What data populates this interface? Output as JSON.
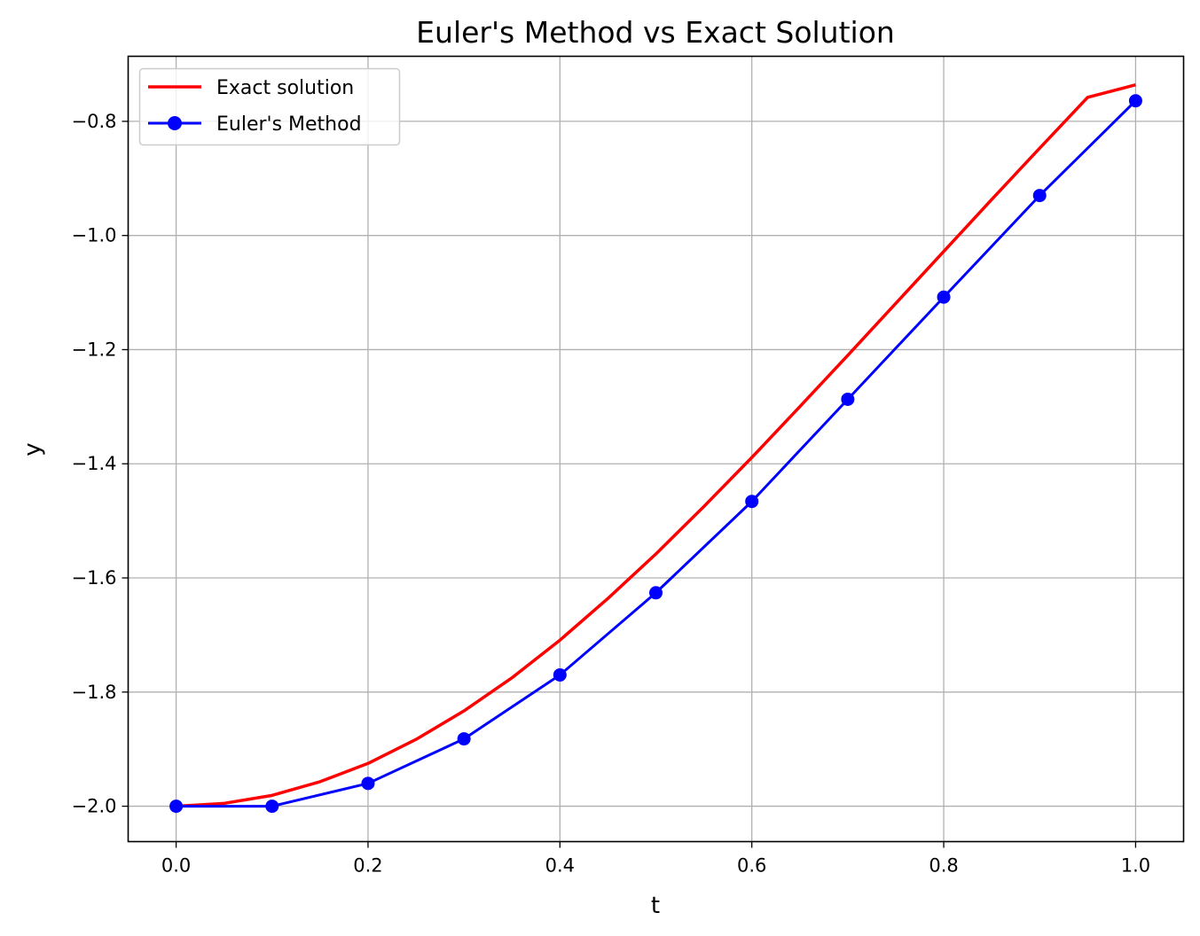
{
  "chart_data": {
    "type": "line",
    "title": "Euler's Method vs Exact Solution",
    "xlabel": "t",
    "ylabel": "y",
    "xlim": [
      -0.05,
      1.05
    ],
    "ylim": [
      -2.062,
      -0.686
    ],
    "xticks": [
      0.0,
      0.2,
      0.4,
      0.6,
      0.8,
      1.0
    ],
    "xtick_labels": [
      "0.0",
      "0.2",
      "0.4",
      "0.6",
      "0.8",
      "1.0"
    ],
    "yticks": [
      -2.0,
      -1.8,
      -1.6,
      -1.4,
      -1.2,
      -1.0,
      -0.8
    ],
    "ytick_labels": [
      "−2.0",
      "−1.8",
      "−1.6",
      "−1.4",
      "−1.2",
      "−1.0",
      "−0.8"
    ],
    "grid": true,
    "legend_position": "upper-left",
    "series": [
      {
        "name": "Exact solution",
        "style": "line",
        "color": "#ff0000",
        "x": [
          0.0,
          0.05,
          0.1,
          0.15,
          0.2,
          0.25,
          0.3,
          0.35,
          0.4,
          0.45,
          0.5,
          0.55,
          0.6,
          0.65,
          0.7,
          0.75,
          0.8,
          0.85,
          0.9,
          0.95,
          1.0
        ],
        "y": [
          -2.0,
          -1.995,
          -1.981,
          -1.957,
          -1.925,
          -1.883,
          -1.833,
          -1.775,
          -1.709,
          -1.636,
          -1.558,
          -1.475,
          -1.389,
          -1.3,
          -1.21,
          -1.119,
          -1.028,
          -0.937,
          -0.847,
          -0.758,
          -0.736
        ]
      },
      {
        "name": "Euler's Method",
        "style": "line-marker",
        "color": "#0000ff",
        "x": [
          0.0,
          0.1,
          0.2,
          0.3,
          0.4,
          0.5,
          0.6,
          0.7,
          0.8,
          0.9,
          1.0
        ],
        "y": [
          -2.0,
          -2.0,
          -1.96,
          -1.882,
          -1.77,
          -1.626,
          -1.466,
          -1.287,
          -1.108,
          -0.93,
          -0.764
        ]
      }
    ]
  }
}
